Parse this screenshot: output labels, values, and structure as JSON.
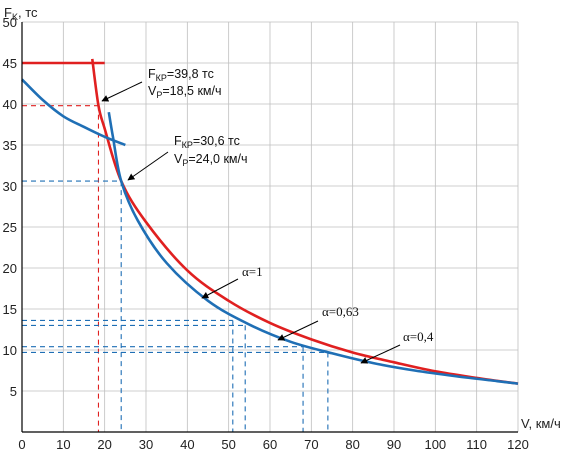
{
  "chart_data": {
    "type": "line",
    "xlabel": "V, км/ч",
    "ylabel": "F",
    "ylabel_sub": "K",
    "ylabel_unit": ", тс",
    "xlim": [
      0,
      120
    ],
    "ylim": [
      0,
      50
    ],
    "x_ticks": [
      "0",
      "10",
      "20",
      "30",
      "40",
      "50",
      "60",
      "70",
      "80",
      "90",
      "100",
      "110",
      "120"
    ],
    "y_ticks": [
      "5",
      "10",
      "15",
      "20",
      "25",
      "30",
      "35",
      "40",
      "45",
      "50"
    ],
    "grid": true,
    "colors": {
      "red": "#e02020",
      "blue": "#1f6fb5",
      "grid": "#bfbfbf"
    },
    "series": [
      {
        "color": "red",
        "points": [
          [
            0,
            45
          ],
          [
            20,
            45
          ],
          [
            17,
            45.5
          ],
          [
            18.5,
            39.8
          ],
          [
            20,
            37
          ],
          [
            24,
            30.6
          ],
          [
            30,
            25.6
          ],
          [
            40,
            19.7
          ],
          [
            50,
            16
          ],
          [
            60,
            13.3
          ],
          [
            70,
            11.3
          ],
          [
            80,
            9.7
          ],
          [
            90,
            8.5
          ],
          [
            100,
            7.4
          ],
          [
            110,
            6.6
          ],
          [
            120,
            5.9
          ]
        ]
      },
      {
        "color": "blue",
        "points": [
          [
            0,
            43
          ],
          [
            5,
            40.5
          ],
          [
            10,
            38.5
          ],
          [
            15,
            37.2
          ],
          [
            20,
            36
          ],
          [
            25,
            35
          ]
        ]
      },
      {
        "color": "blue",
        "points": [
          [
            21,
            39
          ],
          [
            22,
            36
          ],
          [
            24,
            30.6
          ],
          [
            28,
            25.8
          ],
          [
            35,
            20.6
          ],
          [
            45,
            16
          ],
          [
            55,
            13.1
          ],
          [
            65,
            11
          ],
          [
            75,
            9.6
          ],
          [
            85,
            8.4
          ],
          [
            95,
            7.5
          ],
          [
            105,
            6.8
          ],
          [
            115,
            6.2
          ],
          [
            120,
            5.9
          ]
        ]
      }
    ],
    "guides": [
      {
        "color": "red",
        "x": 18.5,
        "y": 39.8
      },
      {
        "color": "blue",
        "x": 24,
        "y": 30.6
      },
      {
        "color": "blue",
        "x": 51,
        "y": 13.6
      },
      {
        "color": "blue",
        "x": 54,
        "y": 13.0
      },
      {
        "color": "blue",
        "x": 68,
        "y": 10.4
      },
      {
        "color": "blue",
        "x": 74,
        "y": 9.7
      }
    ],
    "annotations": {
      "p1": {
        "f": "F",
        "f_sub": "КР",
        "f_val": "=39,8 тс",
        "v": "V",
        "v_sub": "Р",
        "v_val": "=18,5 км/ч"
      },
      "p2": {
        "f": "F",
        "f_sub": "КР",
        "f_val": "=30,6 тс",
        "v": "V",
        "v_sub": "Р",
        "v_val": "=24,0 км/ч"
      },
      "a1": "α=1",
      "a2": "α=0,63",
      "a3": "α=0,4"
    }
  }
}
